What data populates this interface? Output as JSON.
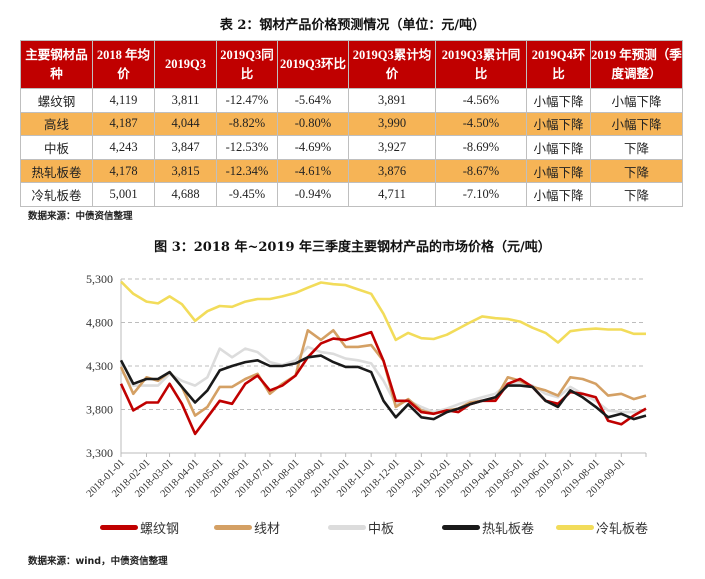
{
  "table": {
    "title": "表 2：钢材产品价格预测情况（单位：元/吨）",
    "headers": [
      "主要钢材品种",
      "2018 年均价",
      "2019Q3",
      "2019Q3同比",
      "2019Q3环比",
      "2019Q3累计均价",
      "2019Q3累计同比",
      "2019Q4环比",
      "2019 年预测（季度调整）"
    ],
    "rows": [
      [
        "螺纹钢",
        "4,119",
        "3,811",
        "-12.47%",
        "-5.64%",
        "3,891",
        "-4.56%",
        "小幅下降",
        "小幅下降"
      ],
      [
        "高线",
        "4,187",
        "4,044",
        "-8.82%",
        "-0.80%",
        "3,990",
        "-4.50%",
        "小幅下降",
        "小幅下降"
      ],
      [
        "中板",
        "4,243",
        "3,847",
        "-12.53%",
        "-4.69%",
        "3,927",
        "-8.69%",
        "小幅下降",
        "下降"
      ],
      [
        "热轧板卷",
        "4,178",
        "3,815",
        "-12.34%",
        "-4.61%",
        "3,876",
        "-8.67%",
        "小幅下降",
        "下降"
      ],
      [
        "冷轧板卷",
        "5,001",
        "4,688",
        "-9.45%",
        "-0.94%",
        "4,711",
        "-7.10%",
        "小幅下降",
        "下降"
      ]
    ],
    "highlight_rows": [
      1,
      3
    ],
    "header_color": "#c00000",
    "highlight_color": "#f6b456",
    "source": "数据来源：中债资信整理"
  },
  "chart_data": {
    "type": "line",
    "title": "图 3：2018 年~2019 年三季度主要钢材产品的市场价格（元/吨）",
    "xlabel": "",
    "ylabel": "",
    "ylim": [
      3300,
      5300
    ],
    "yticks": [
      "3,300",
      "3,800",
      "4,300",
      "4,800",
      "5,300"
    ],
    "xticks": [
      "2018-01-01",
      "2018-02-01",
      "2018-03-01",
      "2018-04-01",
      "2018-05-01",
      "2018-06-01",
      "2018-07-01",
      "2018-08-01",
      "2018-09-01",
      "2018-10-01",
      "2018-11-01",
      "2018-12-01",
      "2019-01-01",
      "2019-02-01",
      "2019-03-01",
      "2019-04-01",
      "2019-05-01",
      "2019-06-01",
      "2019-07-01",
      "2019-08-01",
      "2019-09-01"
    ],
    "xlim": [
      "2018-01-01",
      "2019-10-01"
    ],
    "grid": "horizontal dashed",
    "legend": "bottom",
    "x": [
      "2018-01-01",
      "2018-01-16",
      "2018-02-01",
      "2018-02-15",
      "2018-03-01",
      "2018-03-16",
      "2018-04-01",
      "2018-04-16",
      "2018-05-01",
      "2018-05-16",
      "2018-06-01",
      "2018-06-16",
      "2018-07-01",
      "2018-07-16",
      "2018-08-01",
      "2018-08-16",
      "2018-09-01",
      "2018-09-16",
      "2018-10-01",
      "2018-10-16",
      "2018-11-01",
      "2018-11-16",
      "2018-12-01",
      "2018-12-16",
      "2019-01-01",
      "2019-01-16",
      "2019-02-01",
      "2019-02-15",
      "2019-03-01",
      "2019-03-16",
      "2019-04-01",
      "2019-04-16",
      "2019-05-01",
      "2019-05-16",
      "2019-06-01",
      "2019-06-16",
      "2019-07-01",
      "2019-07-16",
      "2019-08-01",
      "2019-08-16",
      "2019-09-01",
      "2019-09-16",
      "2019-10-01"
    ],
    "series": [
      {
        "name": "螺纹钢",
        "color": "#c00000",
        "values": [
          4095,
          3790,
          3880,
          3880,
          4095,
          3865,
          3520,
          3710,
          3900,
          3865,
          4095,
          4190,
          4020,
          4075,
          4190,
          4400,
          4560,
          4615,
          4600,
          4640,
          4690,
          4360,
          3900,
          3900,
          3770,
          3750,
          3790,
          3770,
          3860,
          3900,
          3900,
          4095,
          4150,
          4060,
          3900,
          3865,
          4000,
          3980,
          3940,
          3670,
          3630,
          3730,
          3810
        ]
      },
      {
        "name": "线材",
        "color": "#d4a064",
        "values": [
          4290,
          3980,
          4170,
          4130,
          4230,
          4060,
          3730,
          3830,
          4060,
          4060,
          4150,
          4210,
          3980,
          4095,
          4190,
          4710,
          4600,
          4710,
          4520,
          4520,
          4540,
          4360,
          3830,
          3920,
          3790,
          3750,
          3790,
          3810,
          3880,
          3900,
          3920,
          4170,
          4130,
          4060,
          4020,
          3960,
          4170,
          4150,
          4095,
          3960,
          3980,
          3920,
          3960
        ]
      },
      {
        "name": "中板",
        "color": "#dcdcdc",
        "values": [
          4250,
          4075,
          4075,
          4075,
          4210,
          4130,
          4075,
          4170,
          4500,
          4400,
          4500,
          4460,
          4345,
          4310,
          4365,
          4520,
          4460,
          4440,
          4385,
          4365,
          4330,
          4130,
          3860,
          3900,
          3830,
          3770,
          3810,
          3860,
          3900,
          3940,
          3980,
          4095,
          4110,
          4075,
          3980,
          3940,
          4060,
          3980,
          3900,
          3790,
          3770,
          3770,
          3790
        ]
      },
      {
        "name": "热轧板卷",
        "color": "#1a1a1a",
        "values": [
          4365,
          4095,
          4150,
          4150,
          4230,
          4060,
          3880,
          4020,
          4250,
          4300,
          4345,
          4365,
          4300,
          4300,
          4330,
          4400,
          4420,
          4345,
          4290,
          4290,
          4230,
          3900,
          3710,
          3860,
          3710,
          3690,
          3770,
          3810,
          3860,
          3900,
          3940,
          4075,
          4075,
          4060,
          3900,
          3830,
          4020,
          3940,
          3830,
          3710,
          3750,
          3690,
          3730
        ]
      },
      {
        "name": "冷轧板卷",
        "color": "#f2dc5a",
        "values": [
          5270,
          5130,
          5040,
          5020,
          5100,
          5010,
          4820,
          4930,
          4990,
          4980,
          5040,
          5070,
          5070,
          5100,
          5140,
          5200,
          5260,
          5240,
          5230,
          5180,
          5130,
          4900,
          4600,
          4680,
          4620,
          4610,
          4660,
          4730,
          4800,
          4870,
          4850,
          4840,
          4810,
          4740,
          4680,
          4570,
          4700,
          4720,
          4730,
          4720,
          4720,
          4670,
          4670
        ]
      }
    ],
    "source": "数据来源：wind，中债资信整理"
  }
}
